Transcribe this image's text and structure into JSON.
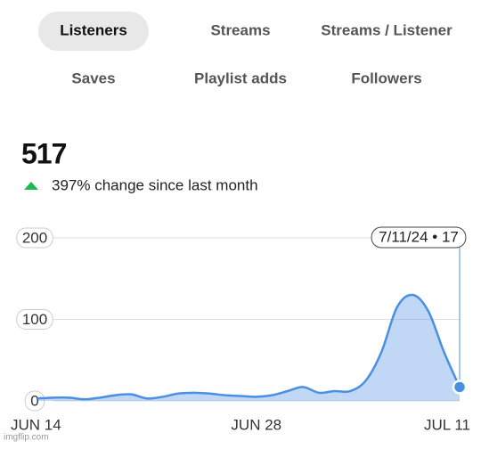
{
  "tabs": [
    "Listeners",
    "Streams",
    "Streams / Listener",
    "Saves",
    "Playlist adds",
    "Followers"
  ],
  "selected_tab": 0,
  "total": "517",
  "change": "397% change since last month",
  "watermark": "imgflip.com",
  "chart_data": {
    "type": "area",
    "categories": [
      "JUN 14",
      null,
      null,
      null,
      null,
      null,
      null,
      null,
      null,
      null,
      null,
      null,
      null,
      null,
      "JUN 28",
      null,
      null,
      null,
      null,
      null,
      null,
      null,
      null,
      null,
      null,
      null,
      null,
      "JUL 11"
    ],
    "series": [
      {
        "name": "Listeners",
        "color": "#4a90e2",
        "values": [
          3,
          4,
          4,
          2,
          4,
          7,
          8,
          3,
          5,
          9,
          10,
          9,
          7,
          6,
          5,
          7,
          12,
          17,
          10,
          12,
          12,
          25,
          60,
          115,
          130,
          110,
          60,
          17
        ]
      }
    ],
    "ylim": [
      0,
      200
    ],
    "yticks": [
      0,
      100,
      200
    ],
    "grid": true,
    "tooltip": "7/11/24 • 17"
  }
}
